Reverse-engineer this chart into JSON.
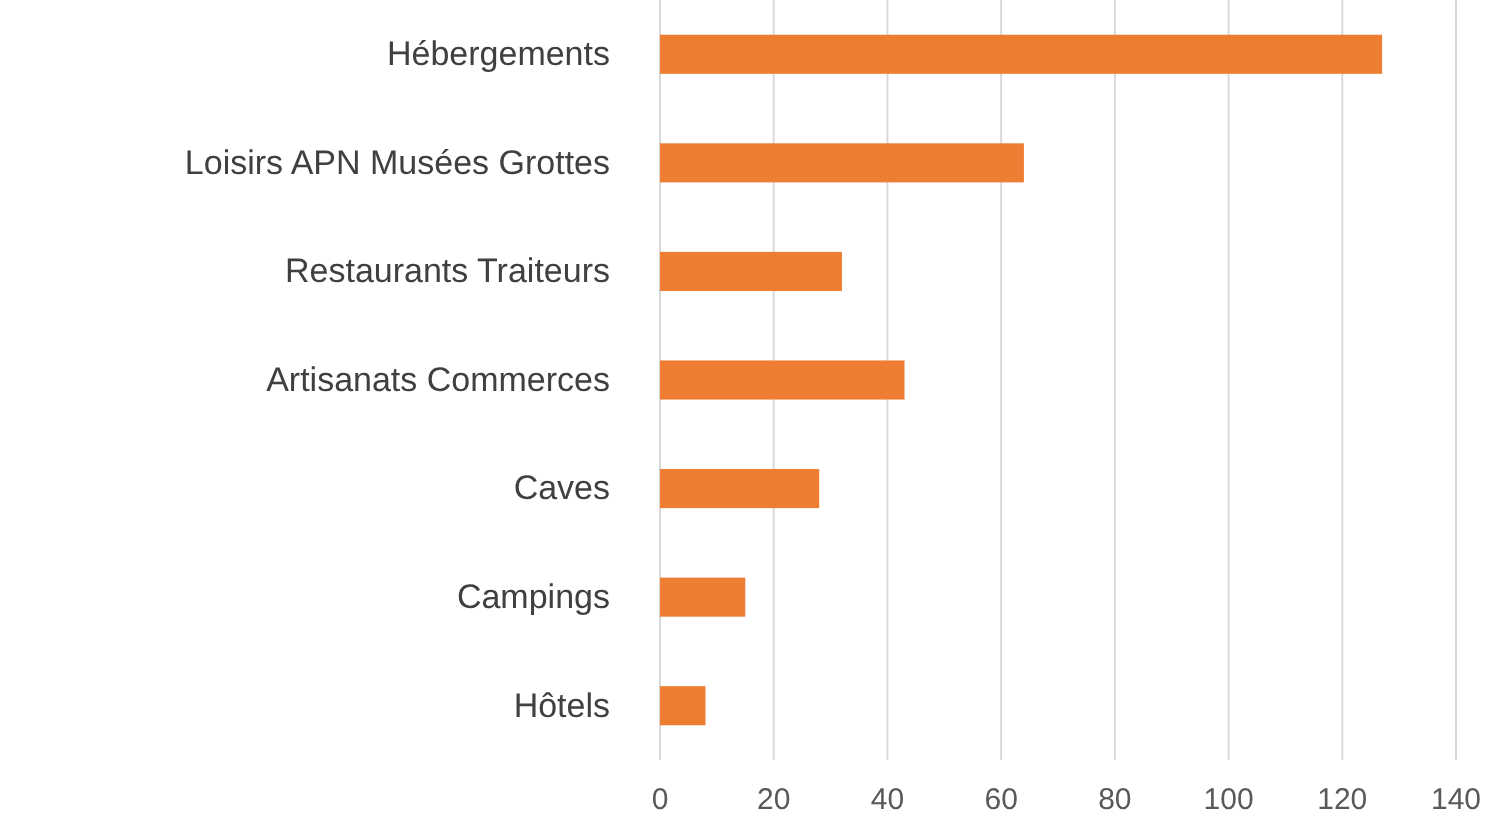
{
  "chart_data": {
    "type": "bar",
    "orientation": "horizontal",
    "categories": [
      "Hébergements",
      "Loisirs APN Musées Grottes",
      "Restaurants Traiteurs",
      "Artisanats Commerces",
      "Caves",
      "Campings",
      "Hôtels"
    ],
    "values": [
      127,
      64,
      32,
      43,
      28,
      15,
      8
    ],
    "color": "#ed7d31",
    "xlim": [
      0,
      140
    ],
    "xticks": [
      0,
      20,
      40,
      60,
      80,
      100,
      120,
      140
    ],
    "grid": "x"
  }
}
